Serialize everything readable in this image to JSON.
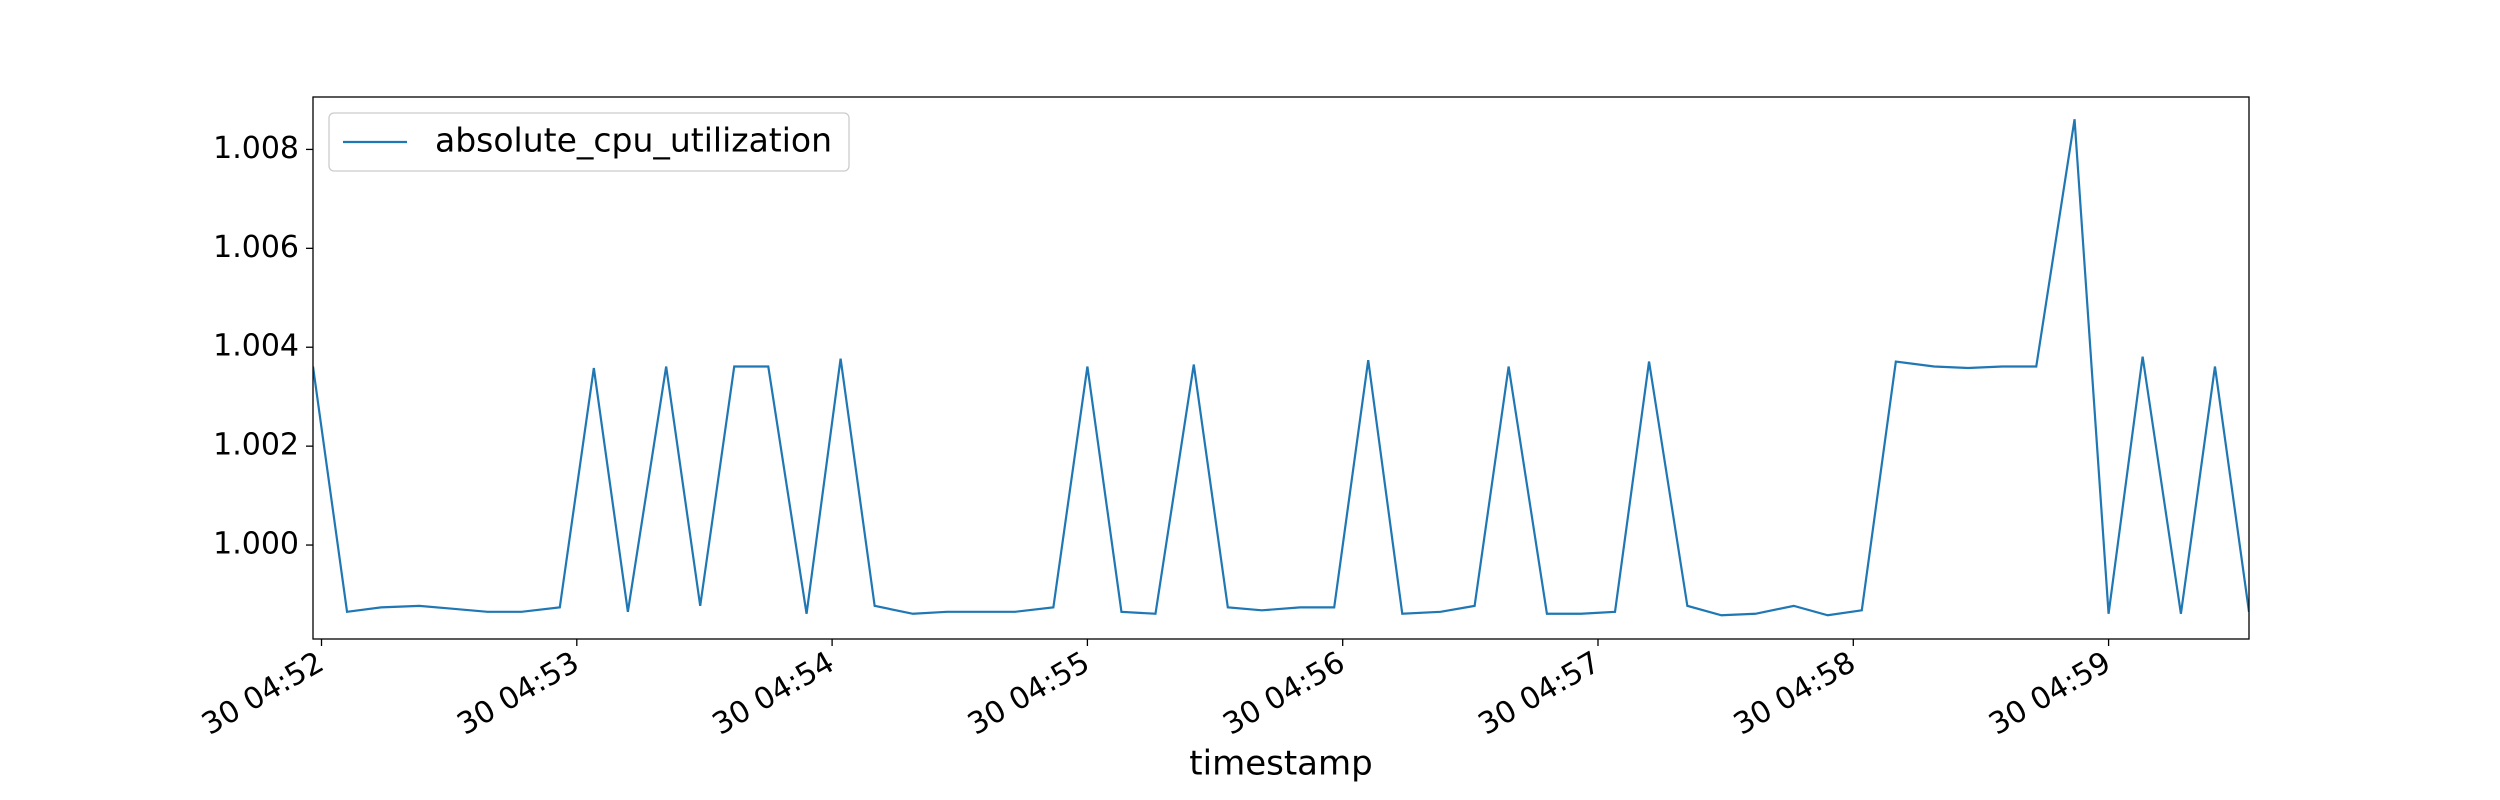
{
  "chart_data": {
    "type": "line",
    "x": [
      "30 04:51:58",
      "30 04:52:06",
      "30 04:52:14",
      "30 04:52:23",
      "30 04:52:31",
      "30 04:52:39",
      "30 04:52:47",
      "30 04:52:56",
      "30 04:53:04",
      "30 04:53:12",
      "30 04:53:21",
      "30 04:53:29",
      "30 04:53:37",
      "30 04:53:45",
      "30 04:53:54",
      "30 04:54:02",
      "30 04:54:10",
      "30 04:54:19",
      "30 04:54:27",
      "30 04:54:35",
      "30 04:54:43",
      "30 04:54:52",
      "30 04:55:00",
      "30 04:55:08",
      "30 04:55:16",
      "30 04:55:25",
      "30 04:55:33",
      "30 04:55:41",
      "30 04:55:50",
      "30 04:55:58",
      "30 04:56:06",
      "30 04:56:14",
      "30 04:56:23",
      "30 04:56:31",
      "30 04:56:39",
      "30 04:56:48",
      "30 04:56:56",
      "30 04:57:04",
      "30 04:57:12",
      "30 04:57:21",
      "30 04:57:29",
      "30 04:57:37",
      "30 04:57:46",
      "30 04:57:54",
      "30 04:58:02",
      "30 04:58:10",
      "30 04:58:19",
      "30 04:58:27",
      "30 04:58:35",
      "30 04:58:43",
      "30 04:58:52",
      "30 04:59:00",
      "30 04:59:08",
      "30 04:59:17",
      "30 04:59:25",
      "30 04:59:33"
    ],
    "series": [
      {
        "name": "absolute_cpu_utilization",
        "color": "#1f77b4",
        "values": [
          1.00361,
          0.99865,
          0.99874,
          0.99877,
          0.99871,
          0.99865,
          0.99865,
          0.99874,
          1.00358,
          0.99865,
          1.00361,
          0.99877,
          1.00361,
          1.00361,
          0.99861,
          1.00377,
          0.99877,
          0.99861,
          0.99865,
          0.99865,
          0.99865,
          0.99874,
          1.00361,
          0.99865,
          0.99861,
          1.00365,
          0.99874,
          0.99868,
          0.99874,
          0.99874,
          1.00374,
          0.99861,
          0.99865,
          0.99877,
          1.00361,
          0.99861,
          0.99861,
          0.99865,
          1.00371,
          0.99877,
          0.99858,
          0.99861,
          0.99877,
          0.99858,
          0.99868,
          1.00371,
          1.00361,
          1.00358,
          1.00361,
          1.00361,
          1.00861,
          0.99861,
          1.00381,
          0.99861,
          1.00361,
          0.99865
        ]
      }
    ],
    "xlabel": "timestamp",
    "xlim": [
      "30 04:51:58",
      "30 04:59:33"
    ],
    "xticks": [
      "30 04:52",
      "30 04:53",
      "30 04:54",
      "30 04:55",
      "30 04:56",
      "30 04:57",
      "30 04:58",
      "30 04:59"
    ],
    "ylim": [
      0.9981,
      1.00906
    ],
    "yticks": [
      {
        "value": 1.0,
        "label": "1.000"
      },
      1.002,
      1.004,
      1.006,
      1.008
    ],
    "grid": false,
    "legend": "upper left"
  }
}
